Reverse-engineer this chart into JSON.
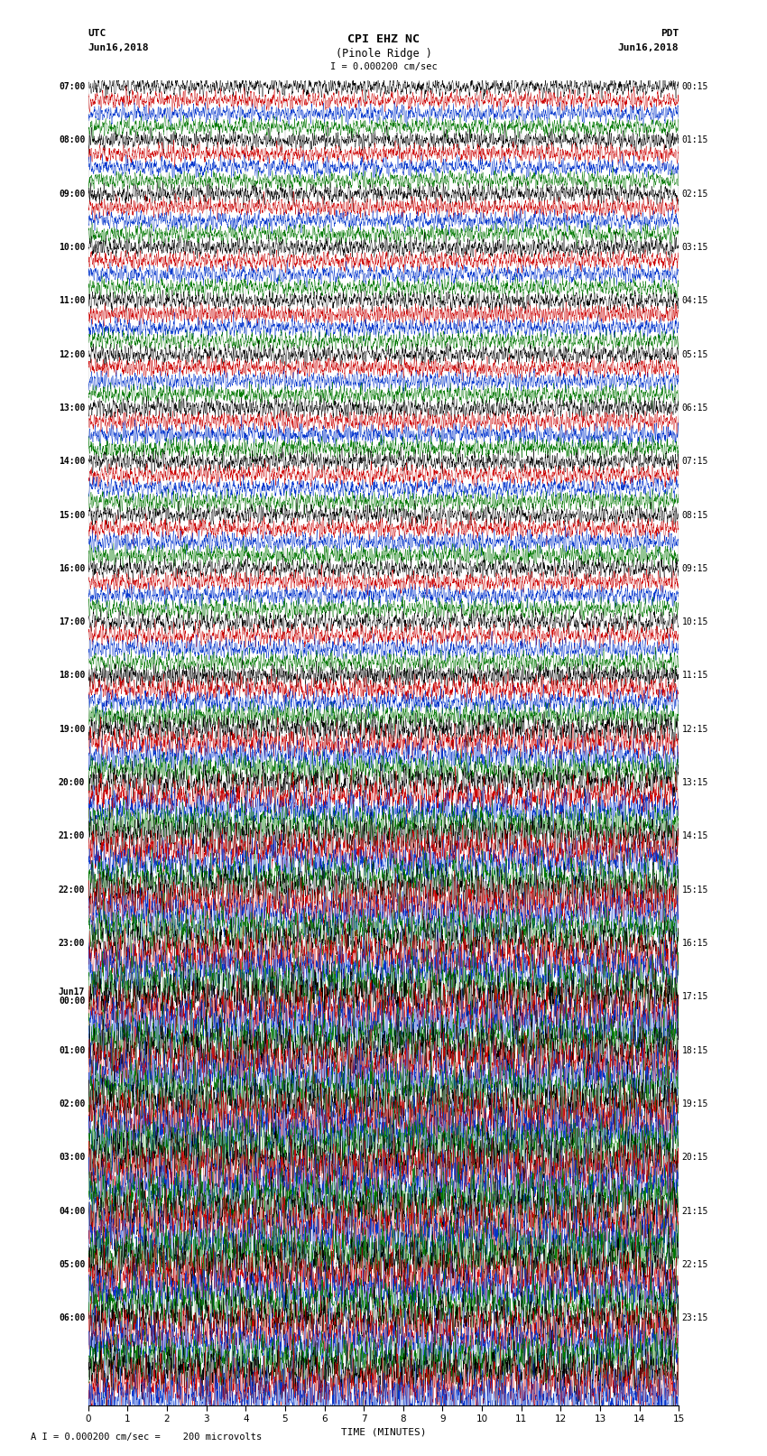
{
  "title_line1": "CPI EHZ NC",
  "title_line2": "(Pinole Ridge )",
  "scale_label": "I = 0.000200 cm/sec",
  "footer_label": "A I = 0.000200 cm/sec =    200 microvolts",
  "xlabel": "TIME (MINUTES)",
  "utc_label": "UTC",
  "pdt_label": "PDT",
  "date_left": "Jun16,2018",
  "date_right": "Jun16,2018",
  "xmin": 0,
  "xmax": 15,
  "xticks": [
    0,
    1,
    2,
    3,
    4,
    5,
    6,
    7,
    8,
    9,
    10,
    11,
    12,
    13,
    14,
    15
  ],
  "colors_cycle": [
    "#000000",
    "#cc0000",
    "#0033cc",
    "#007700"
  ],
  "figure_width": 8.5,
  "figure_height": 16.13,
  "left_labels": [
    "07:00",
    "",
    "",
    "",
    "08:00",
    "",
    "",
    "",
    "09:00",
    "",
    "",
    "",
    "10:00",
    "",
    "",
    "",
    "11:00",
    "",
    "",
    "",
    "12:00",
    "",
    "",
    "",
    "13:00",
    "",
    "",
    "",
    "14:00",
    "",
    "",
    "",
    "15:00",
    "",
    "",
    "",
    "16:00",
    "",
    "",
    "",
    "17:00",
    "",
    "",
    "",
    "18:00",
    "",
    "",
    "",
    "19:00",
    "",
    "",
    "",
    "20:00",
    "",
    "",
    "",
    "21:00",
    "",
    "",
    "",
    "22:00",
    "",
    "",
    "",
    "23:00",
    "",
    "",
    "",
    "Jun17\n00:00",
    "",
    "",
    "",
    "01:00",
    "",
    "",
    "",
    "02:00",
    "",
    "",
    "",
    "03:00",
    "",
    "",
    "",
    "04:00",
    "",
    "",
    "",
    "05:00",
    "",
    "",
    "",
    "06:00",
    "",
    ""
  ],
  "right_labels": [
    "00:15",
    "",
    "",
    "",
    "01:15",
    "",
    "",
    "",
    "02:15",
    "",
    "",
    "",
    "03:15",
    "",
    "",
    "",
    "04:15",
    "",
    "",
    "",
    "05:15",
    "",
    "",
    "",
    "06:15",
    "",
    "",
    "",
    "07:15",
    "",
    "",
    "",
    "08:15",
    "",
    "",
    "",
    "09:15",
    "",
    "",
    "",
    "10:15",
    "",
    "",
    "",
    "11:15",
    "",
    "",
    "",
    "12:15",
    "",
    "",
    "",
    "13:15",
    "",
    "",
    "",
    "14:15",
    "",
    "",
    "",
    "15:15",
    "",
    "",
    "",
    "16:15",
    "",
    "",
    "",
    "17:15",
    "",
    "",
    "",
    "18:15",
    "",
    "",
    "",
    "19:15",
    "",
    "",
    "",
    "20:15",
    "",
    "",
    "",
    "21:15",
    "",
    "",
    "",
    "22:15",
    "",
    "",
    "",
    "23:15",
    "",
    ""
  ],
  "amplitude_profile": [
    0.3,
    0.3,
    0.3,
    0.3,
    0.3,
    0.3,
    0.3,
    0.3,
    0.32,
    0.32,
    0.32,
    0.32,
    0.32,
    0.32,
    0.32,
    0.32,
    0.32,
    0.32,
    0.32,
    0.32,
    0.32,
    0.32,
    0.32,
    0.32,
    0.34,
    0.34,
    0.34,
    0.34,
    0.34,
    0.34,
    0.34,
    0.34,
    0.34,
    0.34,
    0.34,
    0.34,
    0.34,
    0.34,
    0.34,
    0.34,
    0.36,
    0.36,
    0.36,
    0.36,
    0.38,
    0.42,
    0.42,
    0.42,
    0.52,
    0.52,
    0.52,
    0.52,
    0.62,
    0.62,
    0.62,
    0.62,
    0.7,
    0.7,
    0.7,
    0.7,
    0.78,
    0.78,
    0.78,
    0.78,
    0.85,
    0.85,
    0.85,
    0.85,
    0.9,
    0.9,
    0.9,
    0.9,
    0.95,
    0.95,
    0.95,
    0.95,
    0.95,
    0.95,
    0.95,
    0.95,
    0.95,
    0.95,
    0.95,
    0.95,
    0.95,
    0.95,
    0.95,
    0.95,
    0.92,
    0.92,
    0.9,
    0.9,
    0.9,
    0.9,
    0.9,
    0.9,
    0.9,
    0.9,
    0.9
  ]
}
